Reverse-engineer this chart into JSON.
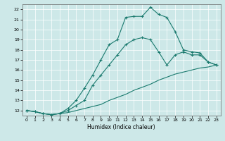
{
  "xlabel": "Humidex (Indice chaleur)",
  "bg_color": "#cde8e8",
  "line_color": "#1a7a6e",
  "xlim": [
    -0.5,
    23.5
  ],
  "ylim": [
    11.5,
    22.5
  ],
  "xticks": [
    0,
    1,
    2,
    3,
    4,
    5,
    6,
    7,
    8,
    9,
    10,
    11,
    12,
    13,
    14,
    15,
    16,
    17,
    18,
    19,
    20,
    21,
    22,
    23
  ],
  "yticks": [
    12,
    13,
    14,
    15,
    16,
    17,
    18,
    19,
    20,
    21,
    22
  ],
  "line1_x": [
    0,
    1,
    2,
    3,
    4,
    5,
    6,
    7,
    8,
    9,
    10,
    11,
    12,
    13,
    14,
    15,
    16,
    17,
    18,
    19,
    20,
    21,
    22,
    23
  ],
  "line1_y": [
    12.0,
    11.9,
    11.7,
    11.6,
    11.7,
    11.8,
    12.0,
    12.2,
    12.4,
    12.6,
    13.0,
    13.3,
    13.6,
    14.0,
    14.3,
    14.6,
    15.0,
    15.3,
    15.6,
    15.8,
    16.0,
    16.2,
    16.3,
    16.5
  ],
  "line2_x": [
    0,
    1,
    2,
    3,
    4,
    5,
    6,
    7,
    8,
    9,
    10,
    11,
    12,
    13,
    14,
    15,
    16,
    17,
    18,
    19,
    20,
    21,
    22,
    23
  ],
  "line2_y": [
    12.0,
    11.9,
    11.7,
    11.6,
    11.7,
    12.0,
    12.5,
    13.0,
    14.5,
    15.5,
    16.5,
    17.5,
    18.5,
    19.0,
    19.2,
    19.0,
    17.8,
    16.5,
    17.5,
    17.8,
    17.5,
    17.5,
    16.8,
    16.5
  ],
  "line3_x": [
    0,
    1,
    2,
    3,
    4,
    5,
    6,
    7,
    8,
    9,
    10,
    11,
    12,
    13,
    14,
    15,
    16,
    17,
    18,
    19,
    20,
    21,
    22,
    23
  ],
  "line3_y": [
    12.0,
    11.9,
    11.7,
    11.6,
    11.7,
    12.2,
    13.0,
    14.2,
    15.5,
    17.0,
    18.5,
    19.0,
    21.2,
    21.3,
    21.3,
    22.2,
    21.5,
    21.2,
    19.8,
    18.0,
    17.8,
    17.7,
    16.8,
    16.5
  ]
}
